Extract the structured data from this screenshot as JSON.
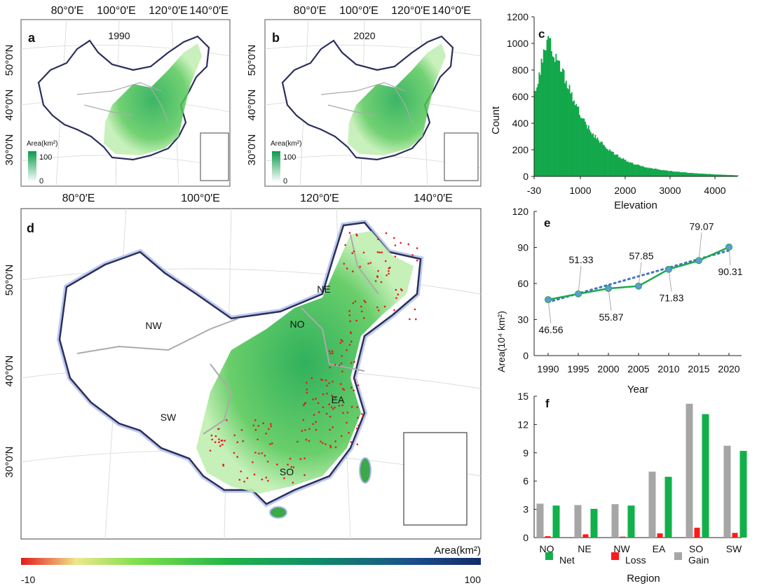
{
  "maps": {
    "a": {
      "label": "a",
      "year": "1990",
      "top_ticks": [
        "80°0′E",
        "100°0′E",
        "120°0′E",
        "140°0′E"
      ],
      "left_ticks": [
        "50°0′N",
        "40°0′N",
        "30°0′N"
      ],
      "bottom_ticks": [
        "80°0′E",
        "100°0′E"
      ],
      "legend_title": "Area(km²)",
      "legend_max": "100",
      "legend_min": "0"
    },
    "b": {
      "label": "b",
      "year": "2020",
      "top_ticks": [
        "80°0′E",
        "100°0′E",
        "120°0′E",
        "140°0′E"
      ],
      "left_ticks": [
        "50°0′N",
        "40°0′N",
        "30°0′N"
      ],
      "bottom_ticks": [
        "120°0′E",
        "140°0′E"
      ],
      "legend_title": "Area(km²)",
      "legend_max": "100",
      "legend_min": "0"
    },
    "d": {
      "label": "d",
      "left_ticks": [
        "50°0′N",
        "40°0′N",
        "30°0′N"
      ],
      "regions": [
        "NE",
        "NW",
        "NO",
        "EA",
        "SW",
        "SO"
      ],
      "colorbar_title": "Area(km²)",
      "colorbar_min": "-10",
      "colorbar_max": "100"
    }
  },
  "chart_data": [
    {
      "id": "c",
      "label": "c",
      "type": "bar",
      "title": "",
      "xlabel": "Elevation",
      "ylabel": "Count",
      "xlim": [
        -30,
        4500
      ],
      "ylim": [
        0,
        1200
      ],
      "xticks": [
        "-30",
        "1000",
        "2000",
        "3000",
        "4000"
      ],
      "yticks": [
        "0",
        "200",
        "400",
        "600",
        "800",
        "1000",
        "1200"
      ],
      "bin_width": 25,
      "shape": {
        "peak_x": 300,
        "peak_y": 1040,
        "start_y": 600,
        "rise_end_x": 250,
        "decay_x": [
          300,
          500,
          700,
          900,
          1100,
          1300,
          1500,
          1800,
          2100,
          2500,
          3000,
          3500,
          4000,
          4500
        ],
        "decay_y": [
          1000,
          870,
          700,
          540,
          410,
          310,
          240,
          160,
          105,
          65,
          40,
          25,
          15,
          8
        ]
      }
    },
    {
      "id": "e",
      "label": "e",
      "type": "line",
      "title": "",
      "xlabel": "Year",
      "ylabel": "Area(10⁴ km²)",
      "x": [
        "1990",
        "1995",
        "2000",
        "2005",
        "2010",
        "2015",
        "2020"
      ],
      "values": [
        46.56,
        51.33,
        55.87,
        57.85,
        71.83,
        79.07,
        90.31
      ],
      "value_labels": [
        "46.56",
        "51.33",
        "55.87",
        "57.85",
        "71.83",
        "79.07",
        "90.31"
      ],
      "trend": {
        "start": 44.5,
        "end": 87.5
      },
      "ylim": [
        0,
        120
      ],
      "yticks": [
        "0",
        "30",
        "60",
        "90",
        "120"
      ],
      "colors": {
        "line": "#1aaa4b",
        "trend": "#4472c4",
        "marker": "#5b9bd5"
      }
    },
    {
      "id": "f",
      "label": "f",
      "type": "bar",
      "title": "",
      "xlabel": "Region",
      "ylabel": "",
      "categories": [
        "NO",
        "NE",
        "NW",
        "EA",
        "SO",
        "SW"
      ],
      "series": [
        {
          "name": "Gain",
          "color": "#a6a6a6",
          "values": [
            3.6,
            3.45,
            3.55,
            7.0,
            14.2,
            9.75
          ]
        },
        {
          "name": "Loss",
          "color": "#ff1a1a",
          "values": [
            0.15,
            0.35,
            0.1,
            0.45,
            1.05,
            0.5
          ]
        },
        {
          "name": "Net",
          "color": "#12b04b",
          "values": [
            3.4,
            3.05,
            3.4,
            6.45,
            13.1,
            9.2
          ]
        }
      ],
      "legend": [
        "Net",
        "Loss",
        "Gain"
      ],
      "ylim": [
        0,
        15
      ],
      "yticks": [
        "0",
        "3",
        "6",
        "9",
        "12",
        "15"
      ]
    }
  ]
}
